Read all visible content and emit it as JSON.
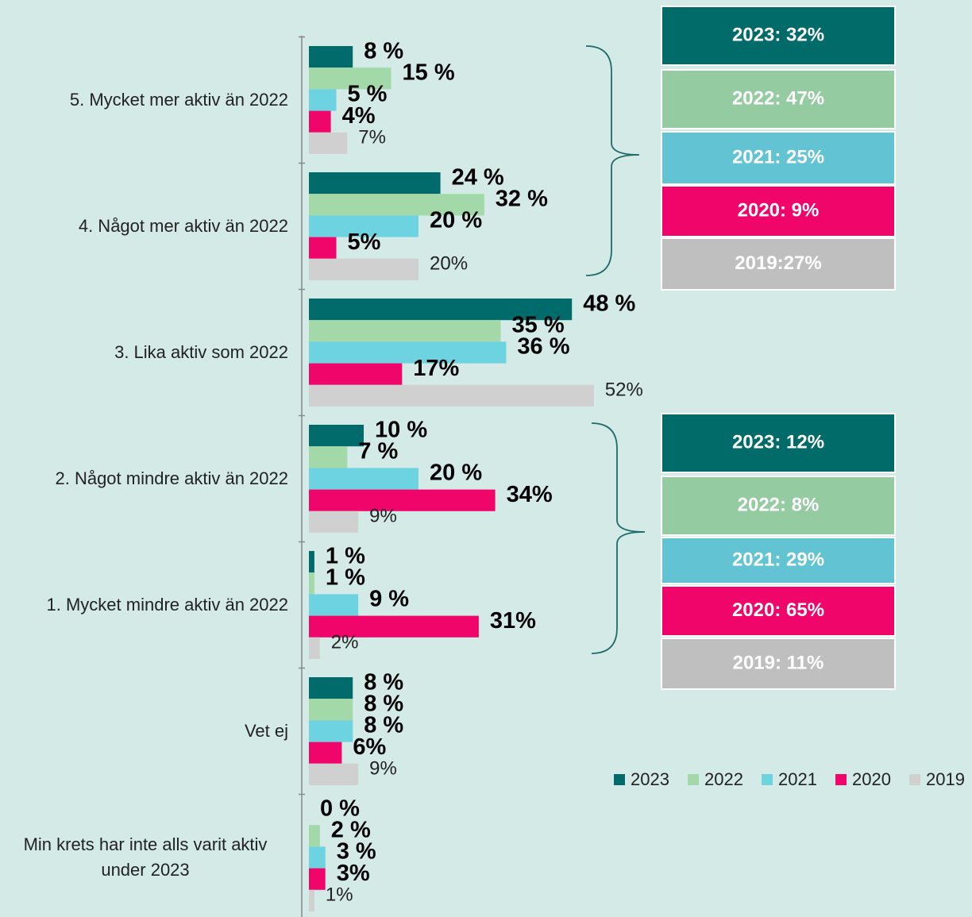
{
  "chart_data": {
    "type": "bar",
    "orientation": "horizontal",
    "categories": [
      "5. Mycket mer aktiv än 2022",
      "4. Något mer aktiv än 2022",
      "3. Lika aktiv som 2022",
      "2. Något mindre aktiv än 2022",
      "1. Mycket mindre aktiv än 2022",
      "Vet ej",
      "Min krets har inte alls varit aktiv under 2023"
    ],
    "xlim": [
      0,
      100
    ],
    "series": [
      {
        "name": "2023",
        "color": "#006b6a",
        "label_weight": "bold",
        "values": [
          8,
          24,
          48,
          10,
          1,
          8,
          0
        ],
        "value_labels": [
          "8 %",
          "24 %",
          "48 %",
          "10 %",
          "1 %",
          "8 %",
          "0 %"
        ]
      },
      {
        "name": "2022",
        "color": "#a3d9a8",
        "label_weight": "bold",
        "values": [
          15,
          32,
          35,
          7,
          1,
          8,
          2
        ],
        "value_labels": [
          "15 %",
          "32 %",
          "35 %",
          "7 %",
          "1 %",
          "8 %",
          "2 %"
        ]
      },
      {
        "name": "2021",
        "color": "#6dd3e0",
        "label_weight": "bold",
        "values": [
          5,
          20,
          36,
          20,
          9,
          8,
          3
        ],
        "value_labels": [
          "5 %",
          "20 %",
          "36 %",
          "20 %",
          "9 %",
          "8 %",
          "3 %"
        ]
      },
      {
        "name": "2020",
        "color": "#f0066a",
        "label_weight": "bold",
        "values": [
          4,
          5,
          17,
          34,
          31,
          6,
          3
        ],
        "value_labels": [
          "4%",
          "5%",
          "17%",
          "34%",
          "31%",
          "6%",
          "3%"
        ]
      },
      {
        "name": "2019",
        "color": "#d0d0d0",
        "label_weight": "normal",
        "values": [
          7,
          20,
          52,
          9,
          2,
          9,
          1
        ],
        "value_labels": [
          "7%",
          "20%",
          "52%",
          "9%",
          "2%",
          "9%",
          "1%"
        ]
      }
    ],
    "legend": "bottom-right",
    "summary_boxes": [
      {
        "items": [
          {
            "label": "2023: 32%",
            "color": "#006b68"
          },
          {
            "label": "2022: 47%",
            "color": "#94cba0"
          },
          {
            "label": "2021: 25%",
            "color": "#62c3d2"
          },
          {
            "label": "2020: 9%",
            "color": "#f0066a"
          },
          {
            "label": "2019:27%",
            "color": "#bfbfbf"
          }
        ]
      },
      {
        "items": [
          {
            "label": "2023: 12%",
            "color": "#006b68"
          },
          {
            "label": "2022: 8%",
            "color": "#94cba0"
          },
          {
            "label": "2021: 29%",
            "color": "#62c3d2"
          },
          {
            "label": "2020: 65%",
            "color": "#f0066a"
          },
          {
            "label": "2019: 11%",
            "color": "#bfbfbf"
          }
        ]
      }
    ]
  }
}
